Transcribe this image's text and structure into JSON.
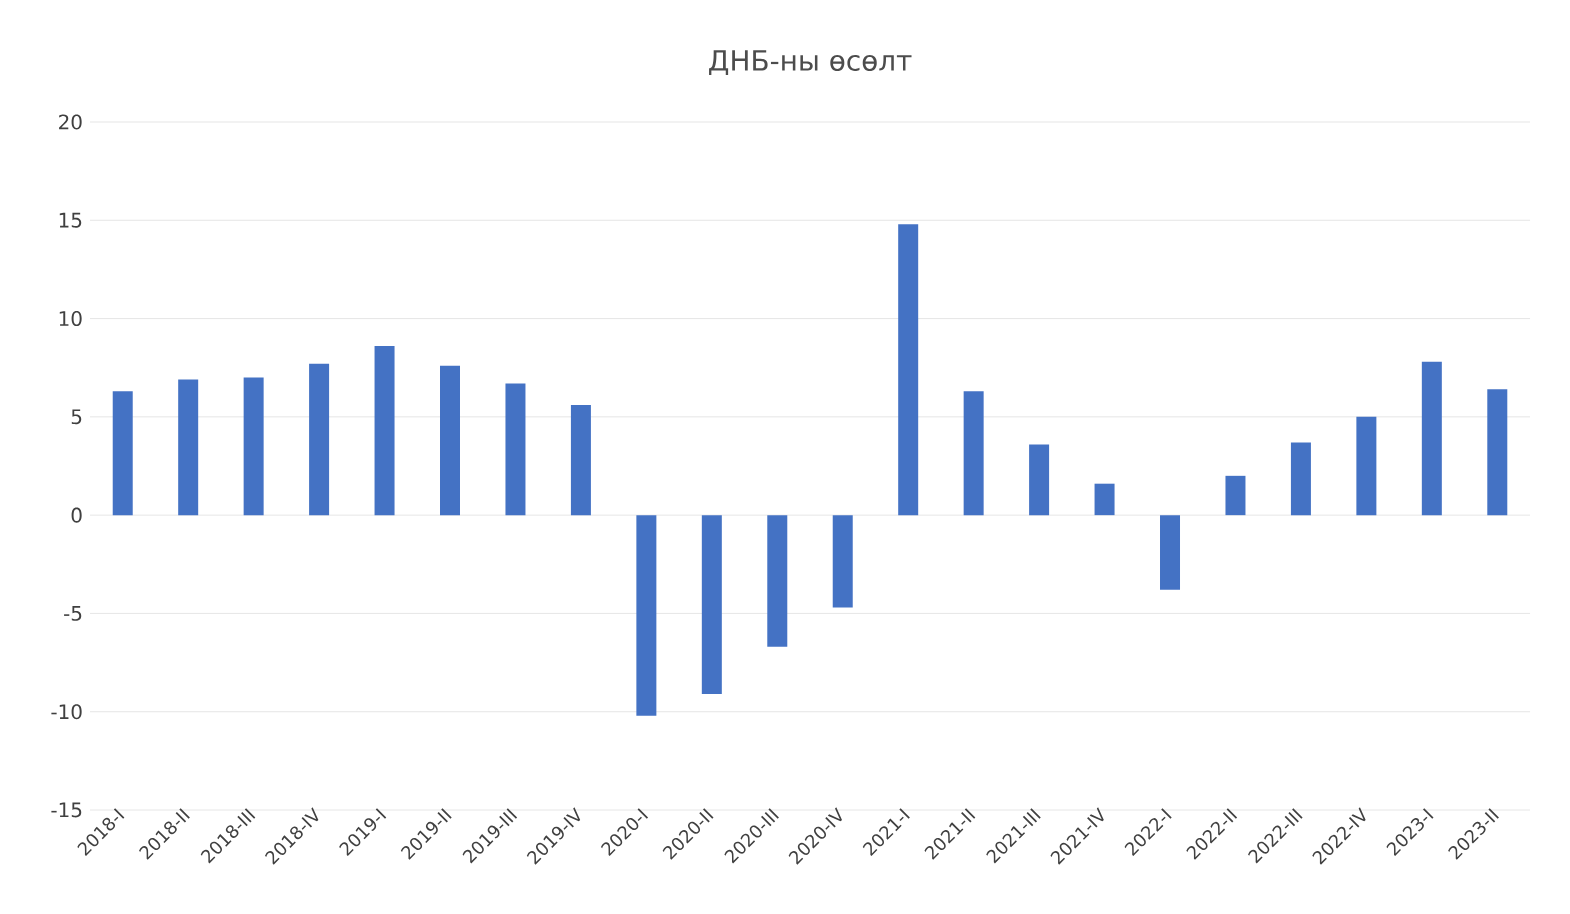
{
  "chart_data": {
    "type": "bar",
    "title": "ДНБ-ны өсөлт",
    "categories": [
      "2018-I",
      "2018-II",
      "2018-III",
      "2018-IV",
      "2019-I",
      "2019-II",
      "2019-III",
      "2019-IV",
      "2020-I",
      "2020-II",
      "2020-III",
      "2020-IV",
      "2021-I",
      "2021-II",
      "2021-III",
      "2021-IV",
      "2022-I",
      "2022-II",
      "2022-III",
      "2022-IV",
      "2023-I",
      "2023-II"
    ],
    "values": [
      6.3,
      6.9,
      7.0,
      7.7,
      8.6,
      7.6,
      6.7,
      5.6,
      -10.2,
      -9.1,
      -6.7,
      -4.7,
      14.8,
      6.3,
      3.6,
      1.6,
      -3.8,
      2.0,
      3.7,
      5.0,
      7.8,
      6.4
    ],
    "color": "#4472c4",
    "ylim": [
      -15,
      20
    ],
    "yticks": [
      -15,
      -10,
      -5,
      0,
      5,
      10,
      15,
      20
    ],
    "grid": "y"
  }
}
